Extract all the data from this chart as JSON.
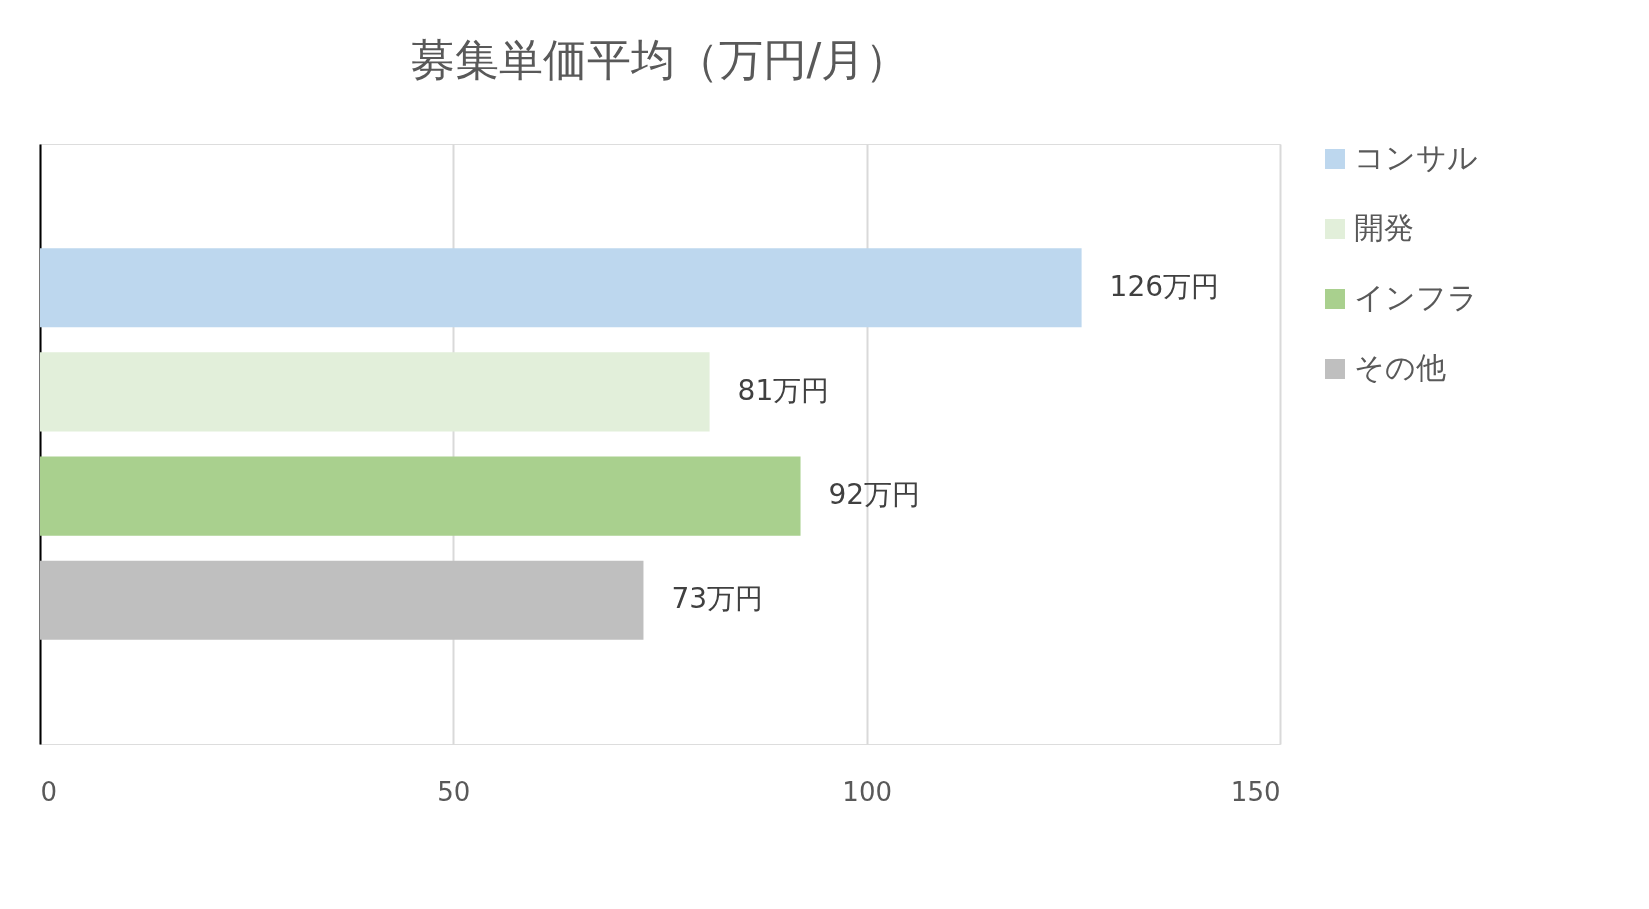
{
  "chart_data": {
    "type": "bar",
    "orientation": "horizontal",
    "title": "募集単価平均（万円/月）",
    "categories": [
      null
    ],
    "series": [
      {
        "name": "コンサル",
        "color": "#bdd7ee",
        "values": [
          126
        ],
        "value_labels": [
          "126万円"
        ]
      },
      {
        "name": "開発",
        "color": "#e2efda",
        "values": [
          81
        ],
        "value_labels": [
          "81万円"
        ]
      },
      {
        "name": "インフラ",
        "color": "#a9d08e",
        "values": [
          92
        ],
        "value_labels": [
          "92万円"
        ]
      },
      {
        "name": "その他",
        "color": "#bfbfbf",
        "values": [
          73
        ],
        "value_labels": [
          "73万円"
        ]
      }
    ],
    "xlim": [
      0,
      150
    ],
    "xticks": [
      0,
      50,
      100,
      150
    ],
    "grid": "x",
    "legend": "right"
  }
}
